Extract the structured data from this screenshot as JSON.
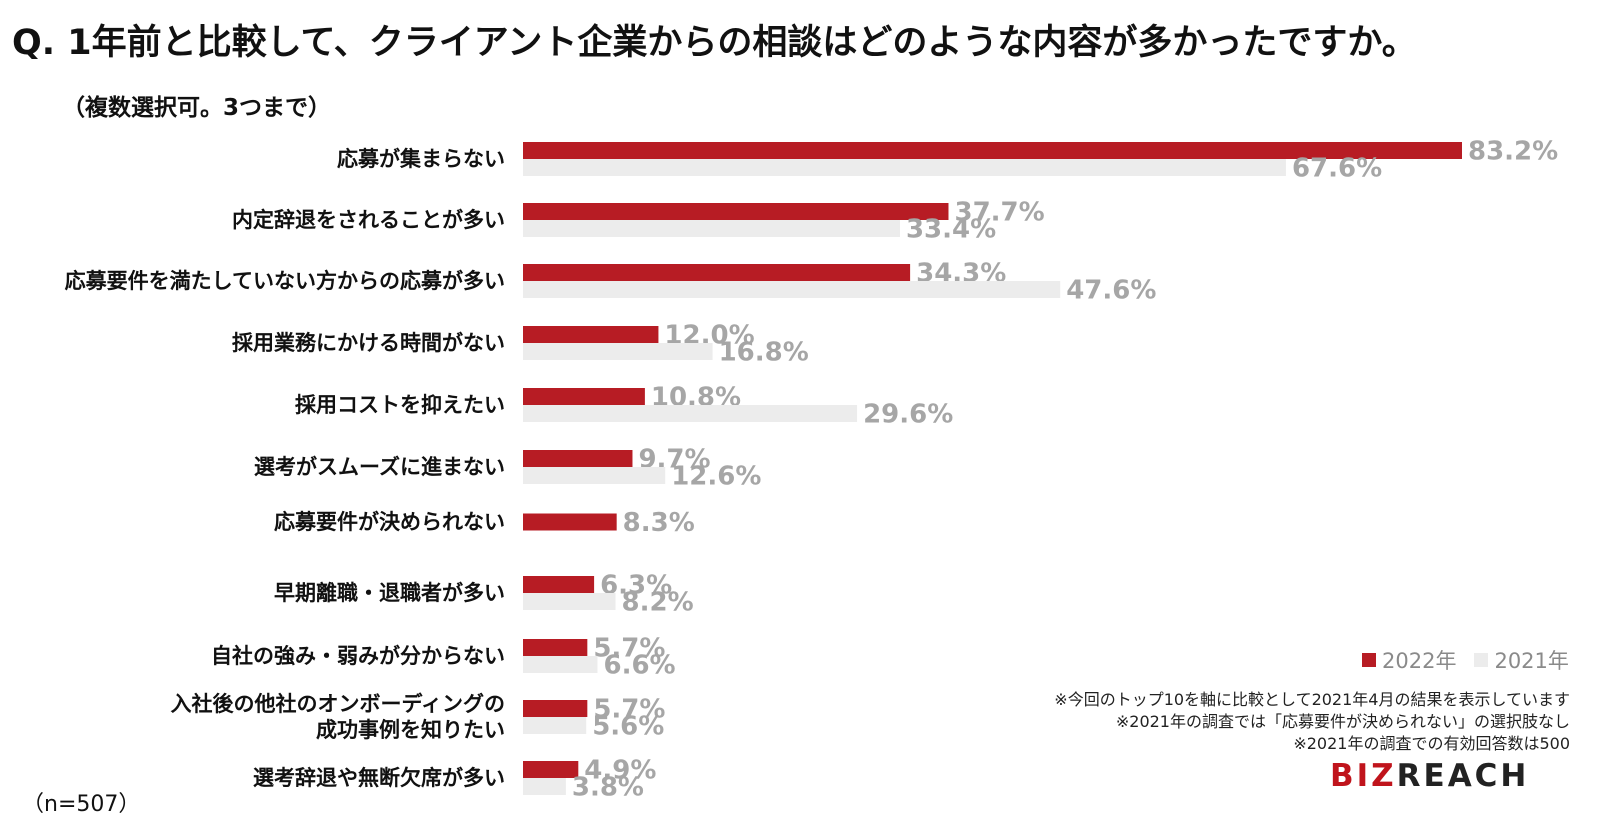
{
  "title": "Q. 1年前と比較して、クライアント企業からの相談はどのような内容が多かったですか。",
  "subtitle": "（複数選択可。3つまで）",
  "sample_size": "（n=507）",
  "notes": [
    "※今回のトップ10を軸に比較として2021年4月の結果を表示しています",
    "※2021年の調査では「応募要件が決められない」の選択肢なし",
    "※2021年の調査での有効回答数は500"
  ],
  "logo": {
    "accent": "BIZ",
    "main": "REACH"
  },
  "colors": {
    "series_2022": "#b71c24",
    "series_2021": "#ececec",
    "value_label": "#a6a6a6"
  },
  "chart_data": {
    "type": "bar",
    "orientation": "horizontal",
    "value_suffix": "%",
    "xlim": [
      0,
      83.2
    ],
    "grid": false,
    "legend_position": "bottom-right",
    "categories": [
      [
        "応募が集まらない"
      ],
      [
        "内定辞退をされることが多い"
      ],
      [
        "応募要件を満たしていない方からの応募が多い"
      ],
      [
        "採用業務にかける時間がない"
      ],
      [
        "採用コストを抑えたい"
      ],
      [
        "選考がスムーズに進まない"
      ],
      [
        "応募要件が決められない"
      ],
      [
        "早期離職・退職者が多い"
      ],
      [
        "自社の強み・弱みが分からない"
      ],
      [
        "入社後の他社のオンボーディングの",
        "成功事例を知りたい"
      ],
      [
        "選考辞退や無断欠席が多い"
      ]
    ],
    "series": [
      {
        "name": "2022年",
        "values": [
          83.2,
          37.7,
          34.3,
          12.0,
          10.8,
          9.7,
          8.3,
          6.3,
          5.7,
          5.7,
          4.9
        ]
      },
      {
        "name": "2021年",
        "values": [
          67.6,
          33.4,
          47.6,
          16.8,
          29.6,
          12.6,
          null,
          8.2,
          6.6,
          5.6,
          3.8
        ]
      }
    ]
  }
}
